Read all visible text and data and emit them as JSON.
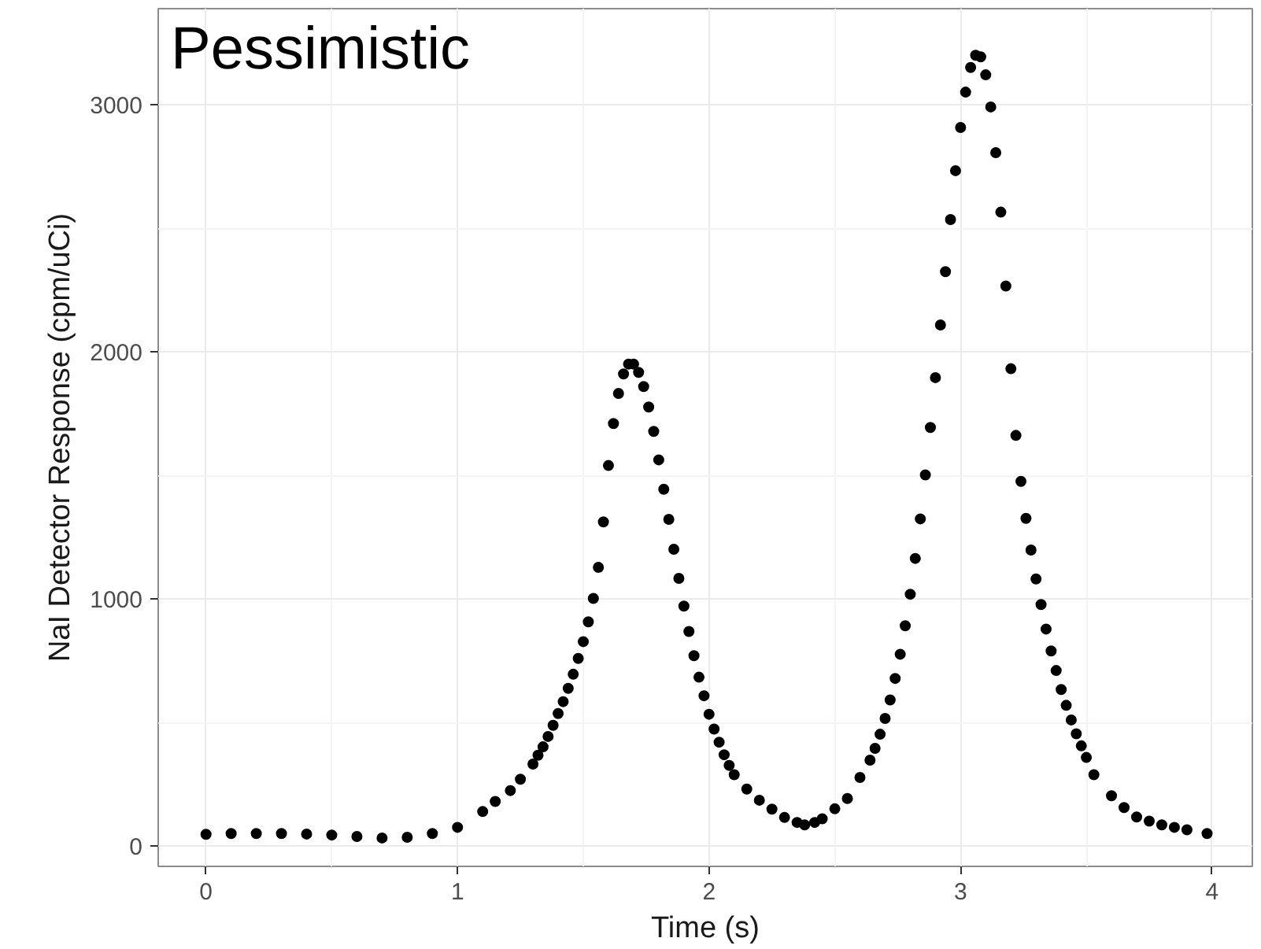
{
  "chart_data": {
    "type": "scatter",
    "xlabel": "Time (s)",
    "ylabel": "NaI Detector Response (cpm/uCi)",
    "annotations": [
      "Pessimistic"
    ],
    "xlim": [
      -0.19,
      4.16
    ],
    "ylim": [
      -83,
      3390
    ],
    "xticks": [
      0,
      1,
      2,
      3,
      4
    ],
    "yticks": [
      0,
      1000,
      2000,
      3000
    ],
    "grid": true,
    "marker": "circle",
    "series": [
      {
        "color": "#000000",
        "x": [
          0,
          0.1,
          0.2,
          0.3,
          0.4,
          0.5,
          0.6,
          0.7,
          0.8,
          0.9,
          1.0,
          1.1,
          1.15,
          1.21,
          1.25,
          1.3,
          1.32,
          1.34,
          1.36,
          1.38,
          1.4,
          1.42,
          1.44,
          1.46,
          1.48,
          1.5,
          1.52,
          1.54,
          1.56,
          1.58,
          1.6,
          1.62,
          1.64,
          1.66,
          1.68,
          1.7,
          1.72,
          1.74,
          1.76,
          1.78,
          1.8,
          1.82,
          1.84,
          1.86,
          1.88,
          1.9,
          1.92,
          1.94,
          1.96,
          1.98,
          2.0,
          2.02,
          2.04,
          2.06,
          2.08,
          2.1,
          2.15,
          2.2,
          2.25,
          2.3,
          2.35,
          2.38,
          2.42,
          2.45,
          2.5,
          2.55,
          2.6,
          2.64,
          2.66,
          2.68,
          2.7,
          2.72,
          2.74,
          2.76,
          2.78,
          2.8,
          2.82,
          2.84,
          2.86,
          2.88,
          2.9,
          2.92,
          2.94,
          2.96,
          2.98,
          3.0,
          3.02,
          3.04,
          3.06,
          3.08,
          3.1,
          3.12,
          3.14,
          3.16,
          3.18,
          3.2,
          3.22,
          3.24,
          3.26,
          3.28,
          3.3,
          3.32,
          3.34,
          3.36,
          3.38,
          3.4,
          3.42,
          3.44,
          3.46,
          3.48,
          3.5,
          3.53,
          3.6,
          3.65,
          3.7,
          3.75,
          3.8,
          3.85,
          3.9,
          3.98
        ],
        "values": [
          47,
          50,
          50,
          50,
          48,
          44,
          38,
          32,
          35,
          50,
          75,
          139,
          180,
          224,
          270,
          331,
          367,
          401,
          443,
          488,
          536,
          584,
          638,
          695,
          759,
          827,
          907,
          1002,
          1128,
          1312,
          1540,
          1710,
          1832,
          1911,
          1951,
          1951,
          1917,
          1860,
          1777,
          1678,
          1563,
          1444,
          1322,
          1201,
          1083,
          971,
          868,
          770,
          683,
          608,
          533,
          473,
          420,
          369,
          326,
          288,
          230,
          185,
          149,
          115,
          95,
          85,
          95,
          110,
          150,
          192,
          277,
          347,
          395,
          452,
          516,
          591,
          678,
          776,
          891,
          1019,
          1164,
          1324,
          1502,
          1694,
          1896,
          2109,
          2325,
          2536,
          2734,
          2909,
          3052,
          3152,
          3201,
          3195,
          3122,
          2992,
          2807,
          2566,
          2267,
          1932,
          1662,
          1476,
          1326,
          1198,
          1081,
          977,
          878,
          789,
          710,
          633,
          569,
          510,
          454,
          405,
          358,
          288,
          203,
          155,
          117,
          100,
          85,
          75,
          65,
          50
        ]
      }
    ]
  }
}
